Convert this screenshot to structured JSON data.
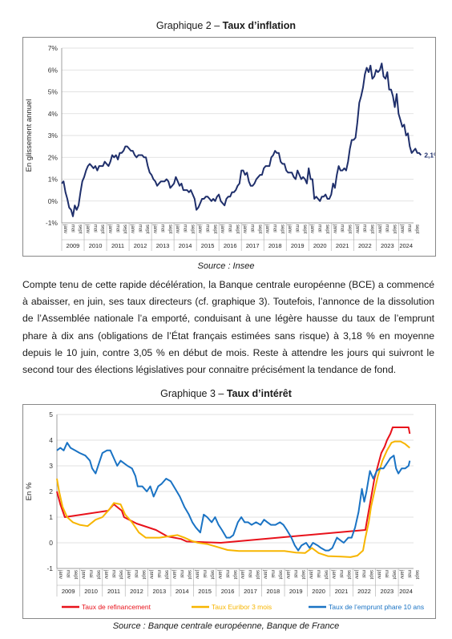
{
  "chart2": {
    "caption_prefix": "Graphique 2 – ",
    "caption_bold": "Taux d’inflation",
    "source": "Source : Insee"
  },
  "paragraph": "Compte tenu de cette rapide décélération, la Banque centrale européenne (BCE) a commencé à abaisser, en juin, ses taux directeurs (cf. graphique 3). Toutefois, l’annonce de la dissolution de l’Assemblée nationale l’a emporté, conduisant à une légère hausse du taux de l’emprunt phare à dix ans (obligations de l’État français estimées sans risque) à 3,18 % en moyenne depuis le 10 juin, contre 3,05 % en début de mois. Reste à attendre les jours qui suivront le second tour des élections législatives pour connaitre précisément la tendance de fond.",
  "chart3": {
    "caption_prefix": "Graphique 3 – ",
    "caption_bold": "Taux d’intérêt",
    "source": "Source : Banque centrale européenne, Banque de France"
  },
  "chart_data": [
    {
      "type": "line",
      "ylabel": "En glissement annuel",
      "ylim": [
        -1,
        7
      ],
      "yticks": [
        "-1%",
        "0%",
        "1%",
        "2%",
        "3%",
        "4%",
        "5%",
        "6%",
        "7%"
      ],
      "years": [
        "2009",
        "2010",
        "2011",
        "2012",
        "2013",
        "2014",
        "2015",
        "2016",
        "2017",
        "2018",
        "2019",
        "2020",
        "2021",
        "2022",
        "2023",
        "2024"
      ],
      "month_labels": [
        "janv",
        "mai",
        "sept"
      ],
      "end_label": "2,1%",
      "grid": true,
      "legend": "none",
      "series": [
        {
          "color": "#1f2f6b",
          "x_start": 2009.0,
          "x_step_months": 1,
          "values": [
            0.8,
            0.9,
            0.4,
            0.1,
            -0.3,
            -0.4,
            -0.7,
            -0.2,
            -0.4,
            -0.2,
            0.4,
            0.9,
            1.1,
            1.4,
            1.6,
            1.7,
            1.6,
            1.5,
            1.6,
            1.4,
            1.6,
            1.6,
            1.6,
            1.8,
            1.7,
            1.6,
            1.8,
            2.1,
            2.0,
            2.1,
            1.9,
            2.2,
            2.2,
            2.3,
            2.5,
            2.5,
            2.4,
            2.3,
            2.3,
            2.1,
            2.0,
            2.1,
            2.1,
            2.1,
            2.0,
            2.0,
            1.6,
            1.3,
            1.2,
            1.0,
            0.9,
            0.7,
            0.8,
            0.9,
            0.9,
            0.9,
            1.0,
            0.9,
            0.6,
            0.7,
            0.8,
            1.1,
            0.9,
            0.7,
            0.8,
            0.5,
            0.5,
            0.5,
            0.4,
            0.5,
            0.3,
            0.1,
            -0.4,
            -0.3,
            -0.1,
            0.1,
            0.1,
            0.2,
            0.2,
            0.1,
            0.0,
            0.1,
            0.0,
            0.2,
            0.3,
            0.0,
            -0.1,
            -0.2,
            0.1,
            0.2,
            0.2,
            0.4,
            0.4,
            0.5,
            0.7,
            0.8,
            1.4,
            1.4,
            1.2,
            1.3,
            0.9,
            0.7,
            0.7,
            0.8,
            1.0,
            1.1,
            1.2,
            1.2,
            1.5,
            1.6,
            1.6,
            1.6,
            2.0,
            2.1,
            2.3,
            2.2,
            2.2,
            1.8,
            1.7,
            1.7,
            1.4,
            1.3,
            1.3,
            1.3,
            1.1,
            1.0,
            1.4,
            1.2,
            1.0,
            1.1,
            1.0,
            0.8,
            1.5,
            1.0,
            1.0,
            0.1,
            0.2,
            0.1,
            0.0,
            0.2,
            0.2,
            0.3,
            0.1,
            0.1,
            0.3,
            0.8,
            0.6,
            1.2,
            1.6,
            1.4,
            1.4,
            1.5,
            1.4,
            1.8,
            2.4,
            2.8,
            2.8,
            2.9,
            3.6,
            4.5,
            4.8,
            5.2,
            5.8,
            6.1,
            5.9,
            6.2,
            5.6,
            5.7,
            6.0,
            5.9,
            6.0,
            6.3,
            5.7,
            5.6,
            5.9,
            5.1,
            5.1,
            4.8,
            4.3,
            4.9,
            4.0,
            3.7,
            3.4,
            3.5,
            3.0,
            3.1,
            2.5,
            2.2,
            2.3,
            2.4,
            2.2,
            2.2,
            2.1
          ]
        }
      ]
    },
    {
      "type": "line",
      "ylabel": "En %",
      "ylim": [
        -1,
        5
      ],
      "yticks": [
        "-1",
        "0",
        "1",
        "2",
        "3",
        "4",
        "5"
      ],
      "years": [
        "2009",
        "2010",
        "2011",
        "2012",
        "2013",
        "2014",
        "2015",
        "2016",
        "2017",
        "2018",
        "2019",
        "2020",
        "2021",
        "2022",
        "2023",
        "2024"
      ],
      "month_labels": [
        "janv",
        "mai",
        "sept"
      ],
      "grid": true,
      "legend": "bottom",
      "series": [
        {
          "name": "Taux de refinancement",
          "color": "#e8121b",
          "points": [
            [
              2009.0,
              2.0
            ],
            [
              2009.15,
              1.5
            ],
            [
              2009.35,
              1.0
            ],
            [
              2011.25,
              1.25
            ],
            [
              2011.5,
              1.5
            ],
            [
              2011.85,
              1.25
            ],
            [
              2011.95,
              1.0
            ],
            [
              2012.5,
              0.75
            ],
            [
              2013.35,
              0.5
            ],
            [
              2013.85,
              0.25
            ],
            [
              2014.45,
              0.15
            ],
            [
              2014.7,
              0.05
            ],
            [
              2016.2,
              0.0
            ],
            [
              2022.55,
              0.5
            ],
            [
              2022.7,
              1.25
            ],
            [
              2022.85,
              2.0
            ],
            [
              2022.95,
              2.5
            ],
            [
              2023.1,
              3.0
            ],
            [
              2023.25,
              3.5
            ],
            [
              2023.4,
              3.75
            ],
            [
              2023.5,
              4.0
            ],
            [
              2023.65,
              4.25
            ],
            [
              2023.75,
              4.5
            ],
            [
              2024.45,
              4.5
            ],
            [
              2024.5,
              4.25
            ]
          ]
        },
        {
          "name": "Taux Euribor 3 mois",
          "color": "#f7b500",
          "points": [
            [
              2009.0,
              2.5
            ],
            [
              2009.1,
              2.0
            ],
            [
              2009.25,
              1.4
            ],
            [
              2009.45,
              1.0
            ],
            [
              2009.7,
              0.8
            ],
            [
              2010.0,
              0.7
            ],
            [
              2010.35,
              0.65
            ],
            [
              2010.7,
              0.9
            ],
            [
              2011.0,
              1.0
            ],
            [
              2011.3,
              1.3
            ],
            [
              2011.5,
              1.55
            ],
            [
              2011.8,
              1.5
            ],
            [
              2012.0,
              1.1
            ],
            [
              2012.3,
              0.8
            ],
            [
              2012.6,
              0.4
            ],
            [
              2012.9,
              0.2
            ],
            [
              2013.5,
              0.2
            ],
            [
              2013.9,
              0.25
            ],
            [
              2014.3,
              0.3
            ],
            [
              2014.6,
              0.2
            ],
            [
              2014.9,
              0.08
            ],
            [
              2015.2,
              0.0
            ],
            [
              2015.6,
              -0.05
            ],
            [
              2016.0,
              -0.15
            ],
            [
              2016.5,
              -0.28
            ],
            [
              2017.0,
              -0.32
            ],
            [
              2019.0,
              -0.32
            ],
            [
              2019.5,
              -0.38
            ],
            [
              2019.9,
              -0.4
            ],
            [
              2020.2,
              -0.2
            ],
            [
              2020.5,
              -0.4
            ],
            [
              2020.9,
              -0.52
            ],
            [
              2021.5,
              -0.54
            ],
            [
              2021.9,
              -0.56
            ],
            [
              2022.2,
              -0.5
            ],
            [
              2022.45,
              -0.3
            ],
            [
              2022.55,
              0.2
            ],
            [
              2022.7,
              0.8
            ],
            [
              2022.8,
              1.4
            ],
            [
              2022.95,
              2.0
            ],
            [
              2023.1,
              2.6
            ],
            [
              2023.3,
              3.2
            ],
            [
              2023.5,
              3.6
            ],
            [
              2023.7,
              3.9
            ],
            [
              2023.85,
              3.95
            ],
            [
              2024.1,
              3.95
            ],
            [
              2024.3,
              3.85
            ],
            [
              2024.5,
              3.7
            ]
          ]
        },
        {
          "name": "Taux de l’emprunt phare 10 ans",
          "color": "#1a73c4",
          "points": [
            [
              2009.0,
              3.6
            ],
            [
              2009.15,
              3.7
            ],
            [
              2009.3,
              3.6
            ],
            [
              2009.45,
              3.9
            ],
            [
              2009.6,
              3.7
            ],
            [
              2009.8,
              3.6
            ],
            [
              2010.0,
              3.5
            ],
            [
              2010.25,
              3.4
            ],
            [
              2010.45,
              3.2
            ],
            [
              2010.55,
              2.9
            ],
            [
              2010.7,
              2.7
            ],
            [
              2010.85,
              3.1
            ],
            [
              2011.0,
              3.5
            ],
            [
              2011.2,
              3.6
            ],
            [
              2011.35,
              3.6
            ],
            [
              2011.5,
              3.3
            ],
            [
              2011.65,
              3.0
            ],
            [
              2011.8,
              3.2
            ],
            [
              2011.95,
              3.1
            ],
            [
              2012.1,
              3.0
            ],
            [
              2012.3,
              2.9
            ],
            [
              2012.45,
              2.6
            ],
            [
              2012.55,
              2.2
            ],
            [
              2012.75,
              2.2
            ],
            [
              2012.95,
              2.0
            ],
            [
              2013.1,
              2.2
            ],
            [
              2013.25,
              1.8
            ],
            [
              2013.45,
              2.2
            ],
            [
              2013.6,
              2.3
            ],
            [
              2013.8,
              2.5
            ],
            [
              2014.0,
              2.4
            ],
            [
              2014.2,
              2.1
            ],
            [
              2014.4,
              1.8
            ],
            [
              2014.6,
              1.4
            ],
            [
              2014.8,
              1.1
            ],
            [
              2014.95,
              0.8
            ],
            [
              2015.1,
              0.6
            ],
            [
              2015.3,
              0.4
            ],
            [
              2015.45,
              1.1
            ],
            [
              2015.6,
              1.0
            ],
            [
              2015.8,
              0.8
            ],
            [
              2015.95,
              1.0
            ],
            [
              2016.1,
              0.7
            ],
            [
              2016.25,
              0.5
            ],
            [
              2016.45,
              0.2
            ],
            [
              2016.6,
              0.2
            ],
            [
              2016.75,
              0.3
            ],
            [
              2016.95,
              0.8
            ],
            [
              2017.1,
              1.0
            ],
            [
              2017.25,
              0.8
            ],
            [
              2017.4,
              0.8
            ],
            [
              2017.55,
              0.7
            ],
            [
              2017.75,
              0.8
            ],
            [
              2017.95,
              0.7
            ],
            [
              2018.1,
              0.9
            ],
            [
              2018.25,
              0.8
            ],
            [
              2018.4,
              0.7
            ],
            [
              2018.6,
              0.7
            ],
            [
              2018.8,
              0.8
            ],
            [
              2018.95,
              0.7
            ],
            [
              2019.1,
              0.5
            ],
            [
              2019.3,
              0.2
            ],
            [
              2019.45,
              -0.1
            ],
            [
              2019.6,
              -0.3
            ],
            [
              2019.75,
              -0.1
            ],
            [
              2019.95,
              0.0
            ],
            [
              2020.1,
              -0.2
            ],
            [
              2020.25,
              0.0
            ],
            [
              2020.45,
              -0.1
            ],
            [
              2020.6,
              -0.2
            ],
            [
              2020.8,
              -0.3
            ],
            [
              2020.95,
              -0.3
            ],
            [
              2021.1,
              -0.2
            ],
            [
              2021.3,
              0.2
            ],
            [
              2021.45,
              0.1
            ],
            [
              2021.6,
              0.0
            ],
            [
              2021.8,
              0.2
            ],
            [
              2021.95,
              0.2
            ],
            [
              2022.1,
              0.6
            ],
            [
              2022.25,
              1.2
            ],
            [
              2022.4,
              2.1
            ],
            [
              2022.5,
              1.6
            ],
            [
              2022.6,
              2.0
            ],
            [
              2022.75,
              2.8
            ],
            [
              2022.9,
              2.5
            ],
            [
              2023.05,
              2.8
            ],
            [
              2023.2,
              2.9
            ],
            [
              2023.35,
              2.9
            ],
            [
              2023.5,
              3.1
            ],
            [
              2023.65,
              3.3
            ],
            [
              2023.8,
              3.4
            ],
            [
              2023.9,
              2.9
            ],
            [
              2024.0,
              2.7
            ],
            [
              2024.15,
              2.9
            ],
            [
              2024.3,
              2.9
            ],
            [
              2024.45,
              3.0
            ],
            [
              2024.5,
              3.2
            ]
          ]
        }
      ]
    }
  ]
}
